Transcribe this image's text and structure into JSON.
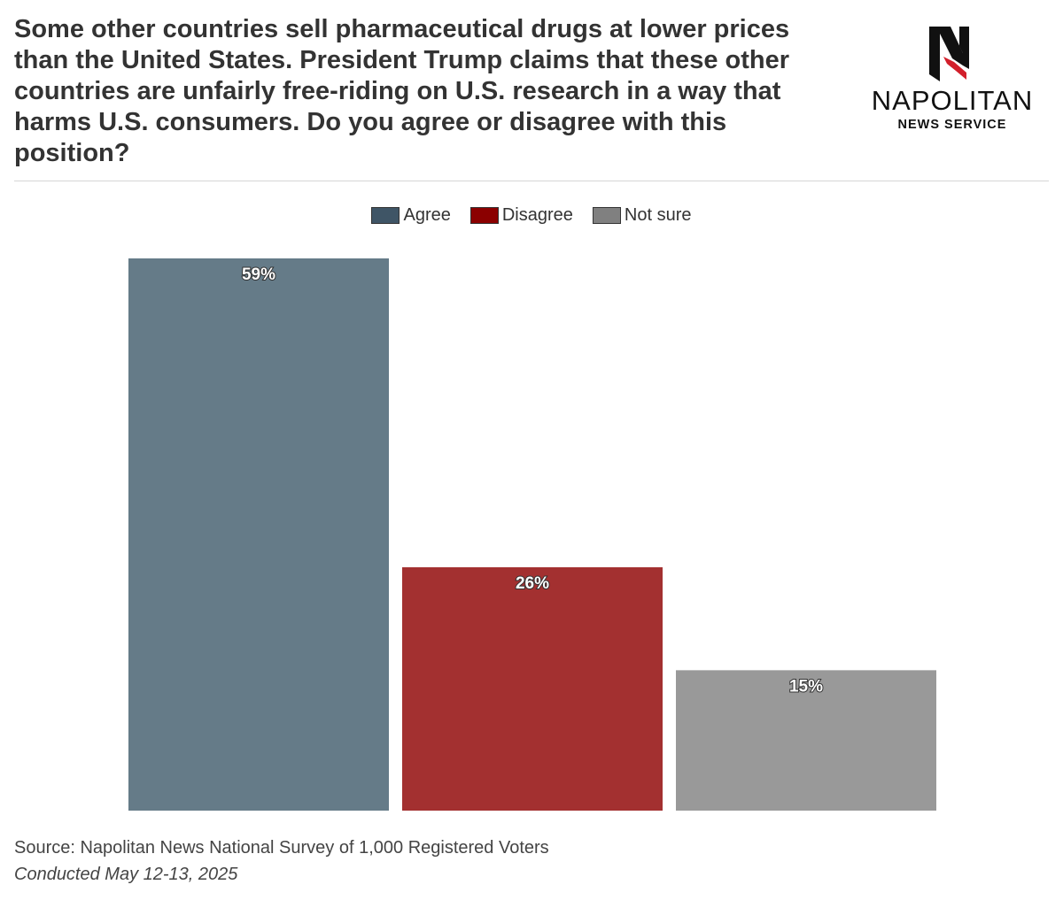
{
  "title": "Some other countries sell pharmaceutical drugs at lower prices than the United States. President Trump claims that these other countries are unfairly free-riding on U.S. research in a way that harms U.S. consumers. Do you agree or disagree with this position?",
  "logo": {
    "name": "NAPOLITAN",
    "subtitle": "NEWS SERVICE",
    "icon": "napolitan-eagle-n-logo"
  },
  "chart_data": {
    "type": "bar",
    "categories": [
      "Agree",
      "Disagree",
      "Not sure"
    ],
    "values": [
      59,
      26,
      15
    ],
    "data_labels": [
      "59%",
      "26%",
      "15%"
    ],
    "bar_colors": [
      "#657b88",
      "#a33030",
      "#999999"
    ],
    "legend": {
      "placement": "top-center",
      "entries": [
        {
          "label": "Agree",
          "color": "#3f5566"
        },
        {
          "label": "Disagree",
          "color": "#8b0000"
        },
        {
          "label": "Not sure",
          "color": "#808080"
        }
      ]
    },
    "ylim": [
      0,
      59
    ],
    "grid": false
  },
  "footer": {
    "source": "Source: Napolitan News National Survey of 1,000 Registered Voters",
    "conducted": "Conducted May 12-13, 2025"
  }
}
